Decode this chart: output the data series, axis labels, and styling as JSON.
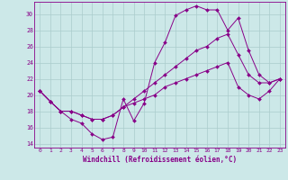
{
  "xlabel": "Windchill (Refroidissement éolien,°C)",
  "bg_color": "#cce8e8",
  "line_color": "#880088",
  "grid_color": "#aacccc",
  "xlim": [
    -0.5,
    23.5
  ],
  "ylim": [
    13.5,
    31.5
  ],
  "yticks": [
    14,
    16,
    18,
    20,
    22,
    24,
    26,
    28,
    30
  ],
  "xticks": [
    0,
    1,
    2,
    3,
    4,
    5,
    6,
    7,
    8,
    9,
    10,
    11,
    12,
    13,
    14,
    15,
    16,
    17,
    18,
    19,
    20,
    21,
    22,
    23
  ],
  "series": [
    [
      20.5,
      19.2,
      18.0,
      17.0,
      16.5,
      15.2,
      14.5,
      14.8,
      19.5,
      16.8,
      19.0,
      24.0,
      26.5,
      29.8,
      30.5,
      31.0,
      30.5,
      30.5,
      28.0,
      29.5,
      25.5,
      22.5,
      21.5,
      22.0
    ],
    [
      20.5,
      19.2,
      18.0,
      18.0,
      17.5,
      17.0,
      17.0,
      17.5,
      18.5,
      19.5,
      20.5,
      21.5,
      22.5,
      23.5,
      24.5,
      25.5,
      26.0,
      27.0,
      27.5,
      25.0,
      22.5,
      21.5,
      21.5,
      22.0
    ],
    [
      20.5,
      19.2,
      18.0,
      18.0,
      17.5,
      17.0,
      17.0,
      17.5,
      18.5,
      19.0,
      19.5,
      20.0,
      21.0,
      21.5,
      22.0,
      22.5,
      23.0,
      23.5,
      24.0,
      21.0,
      20.0,
      19.5,
      20.5,
      22.0
    ]
  ]
}
